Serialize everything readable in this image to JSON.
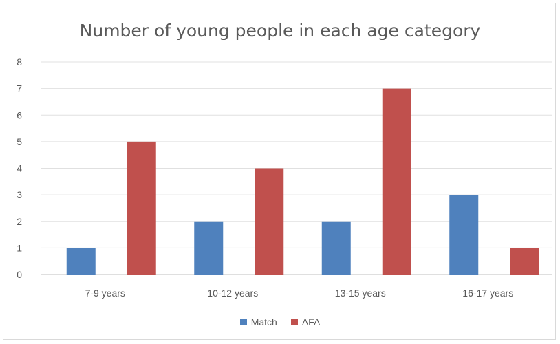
{
  "chart_data": {
    "type": "bar",
    "title": "Number of young people in each age category",
    "categories": [
      "7-9 years",
      "10-12 years",
      "13-15 years",
      "16-17 years"
    ],
    "series": [
      {
        "name": "Match",
        "values": [
          1,
          2,
          2,
          3
        ],
        "color": "#4f81bd"
      },
      {
        "name": "AFA",
        "values": [
          5,
          4,
          7,
          1
        ],
        "color": "#c0504d"
      }
    ],
    "ylim": [
      0,
      8
    ],
    "yticks": [
      "0",
      "1",
      "2",
      "3",
      "4",
      "5",
      "6",
      "7",
      "8"
    ],
    "xlabel": "",
    "ylabel": "",
    "grid": true,
    "legend": "bottom"
  }
}
